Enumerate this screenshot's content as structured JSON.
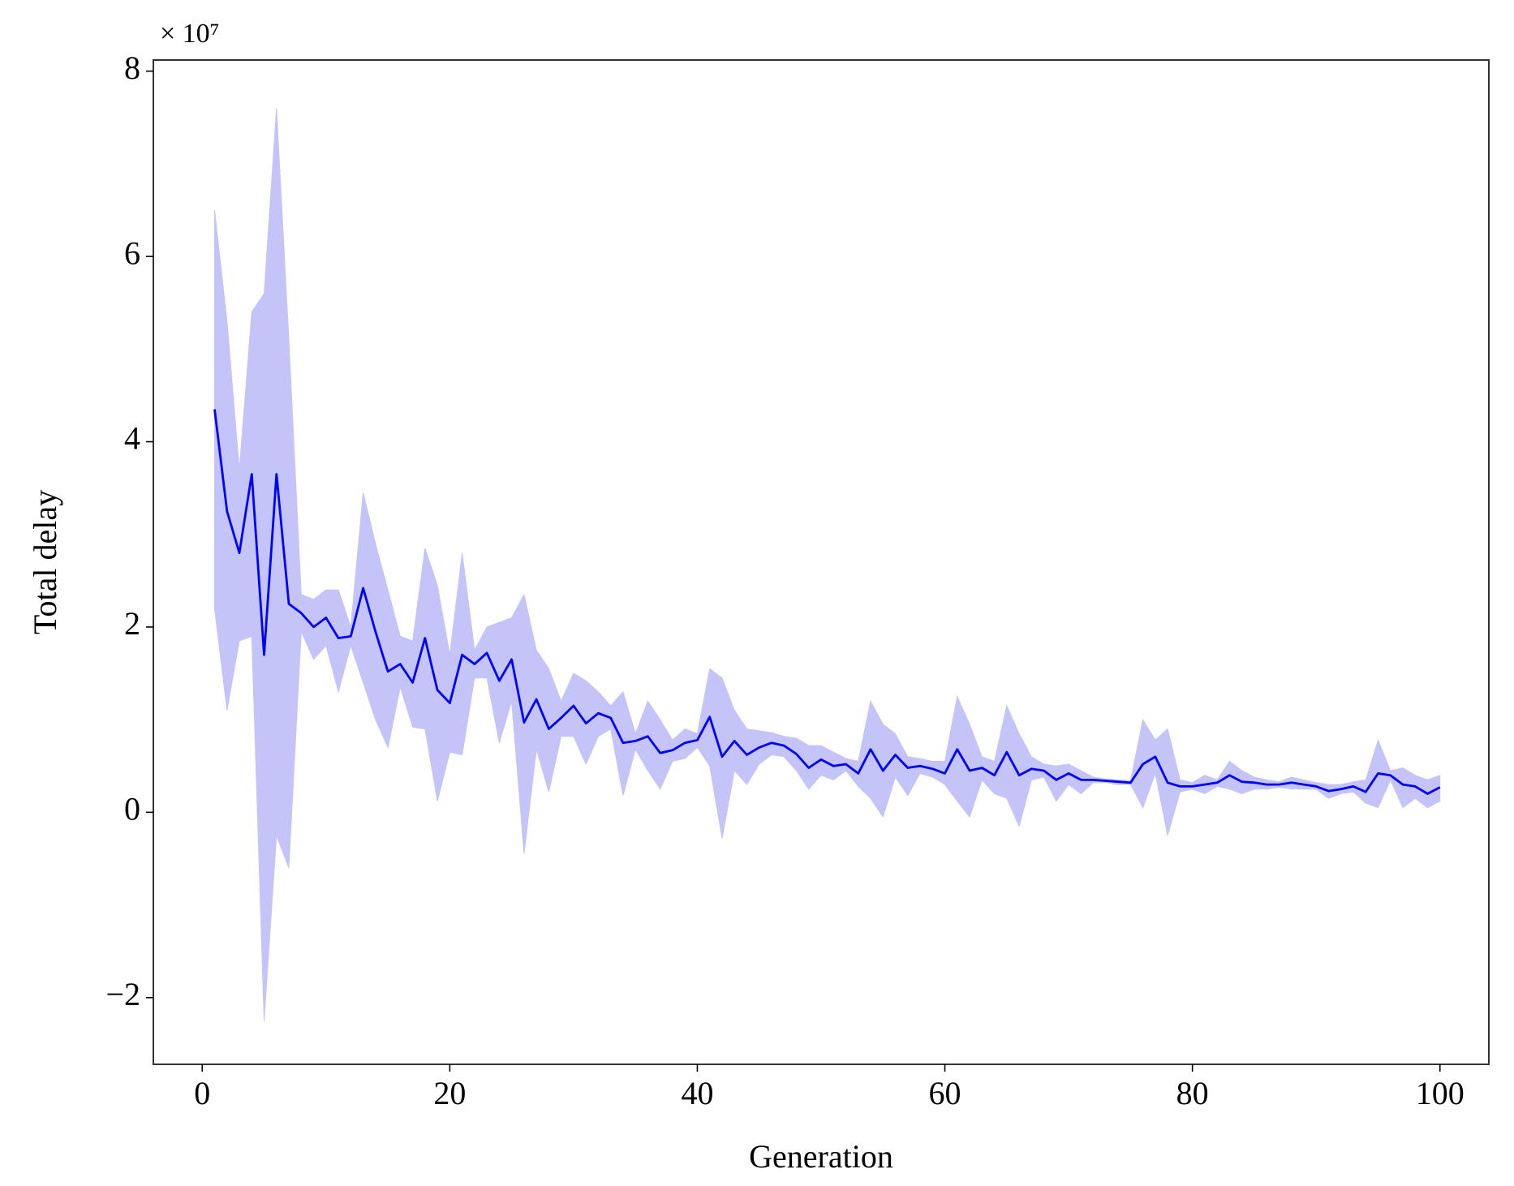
{
  "chart_data": {
    "type": "line",
    "x_label": "Generation",
    "y_label": "Total delay",
    "y_offset_label": "× 10⁷",
    "xlim": [
      -3.95,
      103.95
    ],
    "ylim": [
      -2.72,
      8.12
    ],
    "xticks": [
      0,
      20,
      40,
      60,
      80,
      100
    ],
    "yticks": [
      {
        "value": -2,
        "label": "−2"
      },
      0,
      2,
      4,
      6,
      8
    ],
    "color": "#0000ff",
    "band_color": "#c4c4f8",
    "x": [
      1,
      2,
      3,
      4,
      5,
      6,
      7,
      8,
      9,
      10,
      11,
      12,
      13,
      14,
      15,
      16,
      17,
      18,
      19,
      20,
      21,
      22,
      23,
      24,
      25,
      26,
      27,
      28,
      29,
      30,
      31,
      32,
      33,
      34,
      35,
      36,
      37,
      38,
      39,
      40,
      41,
      42,
      43,
      44,
      45,
      46,
      47,
      48,
      49,
      50,
      51,
      52,
      53,
      54,
      55,
      56,
      57,
      58,
      59,
      60,
      61,
      62,
      63,
      64,
      65,
      66,
      67,
      68,
      69,
      70,
      71,
      72,
      73,
      74,
      75,
      76,
      77,
      78,
      79,
      80,
      81,
      82,
      83,
      84,
      85,
      86,
      87,
      88,
      89,
      90,
      91,
      92,
      93,
      94,
      95,
      96,
      97,
      98,
      99,
      100
    ],
    "values": [
      4.35,
      3.25,
      2.8,
      3.65,
      1.7,
      3.65,
      2.25,
      2.15,
      2.0,
      2.1,
      1.88,
      1.9,
      2.42,
      1.95,
      1.52,
      1.6,
      1.4,
      1.88,
      1.32,
      1.18,
      1.7,
      1.6,
      1.72,
      1.42,
      1.65,
      0.97,
      1.22,
      0.9,
      1.02,
      1.15,
      0.96,
      1.07,
      1.02,
      0.75,
      0.77,
      0.82,
      0.64,
      0.67,
      0.75,
      0.78,
      1.03,
      0.6,
      0.77,
      0.62,
      0.7,
      0.75,
      0.72,
      0.63,
      0.48,
      0.57,
      0.5,
      0.52,
      0.42,
      0.68,
      0.45,
      0.62,
      0.48,
      0.5,
      0.47,
      0.42,
      0.68,
      0.45,
      0.48,
      0.4,
      0.65,
      0.4,
      0.47,
      0.45,
      0.35,
      0.42,
      0.35,
      0.35,
      0.34,
      0.33,
      0.32,
      0.52,
      0.6,
      0.32,
      0.28,
      0.28,
      0.3,
      0.32,
      0.4,
      0.33,
      0.32,
      0.3,
      0.3,
      0.32,
      0.3,
      0.28,
      0.23,
      0.25,
      0.28,
      0.22,
      0.42,
      0.4,
      0.3,
      0.28,
      0.2,
      0.27
    ],
    "upper": [
      6.5,
      5.3,
      3.7,
      5.4,
      5.6,
      7.6,
      5.1,
      2.35,
      2.3,
      2.4,
      2.4,
      2.0,
      3.45,
      2.9,
      2.4,
      1.9,
      1.85,
      2.85,
      2.45,
      1.7,
      2.8,
      1.75,
      2.0,
      2.05,
      2.1,
      2.35,
      1.75,
      1.55,
      1.2,
      1.5,
      1.42,
      1.3,
      1.15,
      1.3,
      0.85,
      1.2,
      1.0,
      0.78,
      0.9,
      0.85,
      1.55,
      1.45,
      1.1,
      0.9,
      0.88,
      0.86,
      0.82,
      0.8,
      0.72,
      0.72,
      0.65,
      0.58,
      0.55,
      1.2,
      0.95,
      0.85,
      0.6,
      0.58,
      0.55,
      0.55,
      1.25,
      0.95,
      0.6,
      0.55,
      1.15,
      0.85,
      0.6,
      0.52,
      0.5,
      0.52,
      0.45,
      0.38,
      0.36,
      0.35,
      0.34,
      1.0,
      0.78,
      0.9,
      0.35,
      0.32,
      0.4,
      0.35,
      0.55,
      0.45,
      0.38,
      0.35,
      0.33,
      0.38,
      0.35,
      0.32,
      0.3,
      0.3,
      0.33,
      0.35,
      0.78,
      0.45,
      0.48,
      0.4,
      0.35,
      0.4
    ],
    "lower": [
      2.2,
      1.1,
      1.85,
      1.9,
      -2.25,
      -0.25,
      -0.6,
      1.95,
      1.65,
      1.8,
      1.3,
      1.8,
      1.4,
      1.0,
      0.7,
      1.35,
      0.92,
      0.9,
      0.12,
      0.65,
      0.62,
      1.45,
      1.45,
      0.75,
      1.2,
      -0.45,
      0.68,
      0.22,
      0.82,
      0.82,
      0.52,
      0.82,
      0.9,
      0.18,
      0.68,
      0.45,
      0.25,
      0.55,
      0.58,
      0.7,
      0.5,
      -0.28,
      0.45,
      0.3,
      0.52,
      0.62,
      0.6,
      0.45,
      0.25,
      0.4,
      0.35,
      0.45,
      0.28,
      0.15,
      -0.05,
      0.38,
      0.18,
      0.42,
      0.38,
      0.3,
      0.12,
      -0.05,
      0.35,
      0.2,
      0.15,
      -0.15,
      0.35,
      0.38,
      0.12,
      0.3,
      0.2,
      0.32,
      0.32,
      0.3,
      0.3,
      0.05,
      0.42,
      -0.25,
      0.22,
      0.25,
      0.2,
      0.28,
      0.25,
      0.2,
      0.25,
      0.25,
      0.27,
      0.25,
      0.25,
      0.25,
      0.15,
      0.2,
      0.22,
      0.1,
      0.05,
      0.35,
      0.05,
      0.15,
      0.05,
      0.12
    ]
  }
}
